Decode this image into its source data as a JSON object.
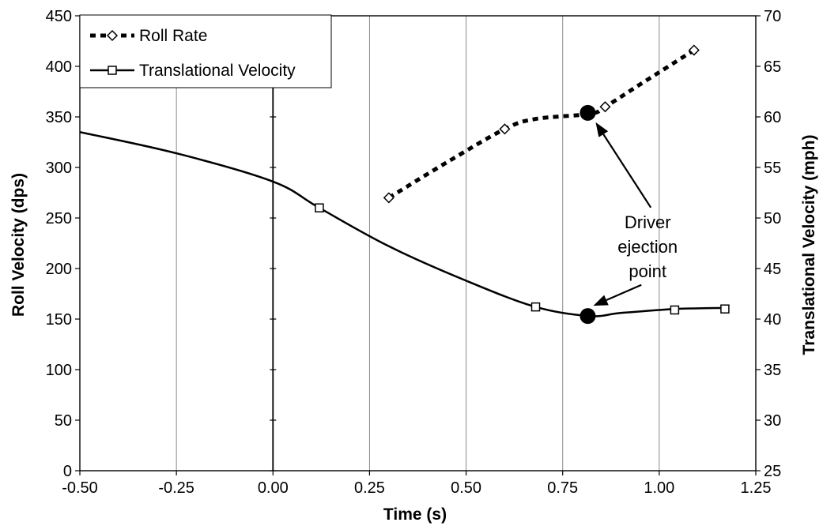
{
  "chart_data": {
    "type": "line",
    "xlabel": "Time (s)",
    "ylabel_left": "Roll Velocity (dps)",
    "ylabel_right": "Translational Velocity (mph)",
    "xlim": [
      -0.5,
      1.25
    ],
    "ylim_left": [
      0,
      450
    ],
    "ylim_right": [
      25,
      70
    ],
    "x_ticks": [
      "-0.50",
      "-0.25",
      "0.00",
      "0.25",
      "0.50",
      "0.75",
      "1.00",
      "1.25"
    ],
    "y_left_ticks": [
      "0",
      "50",
      "100",
      "150",
      "200",
      "250",
      "300",
      "350",
      "400",
      "450"
    ],
    "y_right_ticks": [
      "25",
      "30",
      "35",
      "40",
      "45",
      "50",
      "55",
      "60",
      "65",
      "70"
    ],
    "grid": "vertical",
    "legend_position": "top-left",
    "series": [
      {
        "name": "Roll Rate",
        "axis": "left",
        "line_style": "dashed",
        "marker": "diamond",
        "curve": [
          [
            0.3,
            270
          ],
          [
            0.45,
            305
          ],
          [
            0.6,
            338
          ],
          [
            0.68,
            348
          ],
          [
            0.82,
            353
          ],
          [
            0.86,
            360
          ],
          [
            0.95,
            382
          ],
          [
            1.09,
            416
          ]
        ],
        "markers": [
          [
            0.3,
            270
          ],
          [
            0.6,
            338
          ],
          [
            0.86,
            360
          ],
          [
            1.09,
            416
          ]
        ]
      },
      {
        "name": "Translational Velocity",
        "axis": "right",
        "line_style": "solid",
        "marker": "square",
        "curve": [
          [
            -0.5,
            58.5
          ],
          [
            -0.25,
            56.4
          ],
          [
            0.0,
            53.6
          ],
          [
            0.12,
            51.0
          ],
          [
            0.3,
            47.2
          ],
          [
            0.5,
            43.8
          ],
          [
            0.68,
            41.2
          ],
          [
            0.82,
            40.3
          ],
          [
            0.9,
            40.6
          ],
          [
            1.04,
            41.0
          ],
          [
            1.17,
            41.1
          ]
        ],
        "markers": [
          [
            0.12,
            51.0
          ],
          [
            0.68,
            41.2
          ],
          [
            1.04,
            40.9
          ],
          [
            1.17,
            41.0
          ]
        ]
      }
    ],
    "highlight_points": [
      {
        "axis": "left",
        "x": 0.815,
        "y": 354
      },
      {
        "axis": "right",
        "x": 0.815,
        "y": 40.3
      }
    ],
    "annotation": {
      "lines": [
        "Driver",
        "ejection",
        "point"
      ],
      "x": 0.97,
      "y": 240,
      "axis": "left"
    }
  }
}
